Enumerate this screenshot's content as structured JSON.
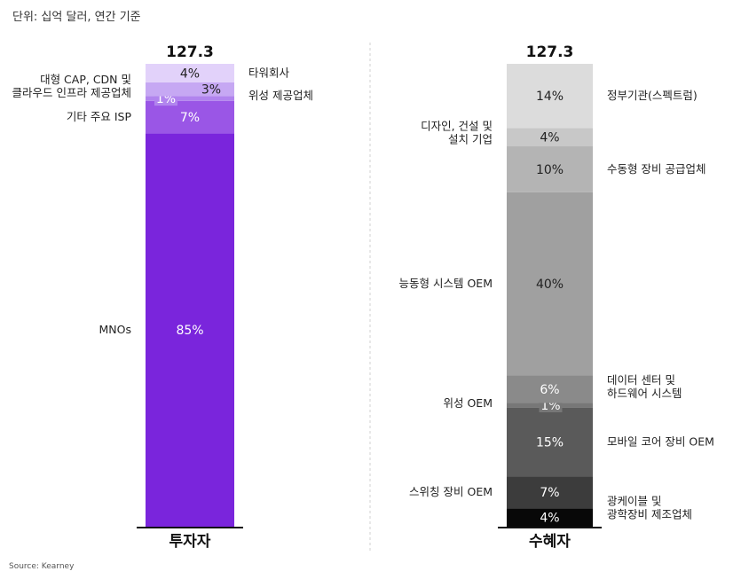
{
  "unit_note": "단위: 십억 달러, 연간 기준",
  "source": "Source: Kearney",
  "chart_data": [
    {
      "type": "stacked-bar",
      "category": "투자자",
      "total": "127.3",
      "segments": [
        {
          "label": "MNOs",
          "value": 85,
          "text": "85%",
          "color": "#7a25dc",
          "text_color": "#ffffff",
          "side": "left"
        },
        {
          "label": "기타 주요 ISP",
          "value": 7,
          "text": "7%",
          "color": "#9a56e6",
          "text_color": "#ffffff",
          "side": "left"
        },
        {
          "label": "대형 CAP, CDN 및\n클라우드 인프라 제공업체",
          "value": 1,
          "text": "1%",
          "color": "#b184ee",
          "text_color": "#ffffff",
          "side": "left"
        },
        {
          "label": "위성 제공업체",
          "value": 3,
          "text": "3%",
          "color": "#c6a8f3",
          "text_color": "#222222",
          "side": "right"
        },
        {
          "label": "타워회사",
          "value": 4,
          "text": "4%",
          "color": "#e2d2fa",
          "text_color": "#222222",
          "side": "right"
        }
      ]
    },
    {
      "type": "stacked-bar",
      "category": "수혜자",
      "total": "127.3",
      "segments": [
        {
          "label": "광케이블 및\n광학장비 제조업체",
          "value": 4,
          "text": "4%",
          "color": "#080808",
          "text_color": "#ffffff",
          "side": "right"
        },
        {
          "label": "스위칭 장비 OEM",
          "value": 7,
          "text": "7%",
          "color": "#3c3c3c",
          "text_color": "#ffffff",
          "side": "left"
        },
        {
          "label": "모바일 코어 장비 OEM",
          "value": 15,
          "text": "15%",
          "color": "#5a5a5a",
          "text_color": "#ffffff",
          "side": "right"
        },
        {
          "label": "위성 OEM",
          "value": 1,
          "text": "1%",
          "color": "#777777",
          "text_color": "#ffffff",
          "side": "left"
        },
        {
          "label": "데이터 센터 및\n하드웨어 시스템",
          "value": 6,
          "text": "6%",
          "color": "#8a8a8a",
          "text_color": "#ffffff",
          "side": "right"
        },
        {
          "label": "능동형 시스템 OEM",
          "value": 40,
          "text": "40%",
          "color": "#a0a0a0",
          "text_color": "#222222",
          "side": "left"
        },
        {
          "label": "수동형 장비 공급업체",
          "value": 10,
          "text": "10%",
          "color": "#b4b4b4",
          "text_color": "#222222",
          "side": "right"
        },
        {
          "label": "디자인, 건설 및\n설치 기업",
          "value": 4,
          "text": "4%",
          "color": "#c8c8c8",
          "text_color": "#222222",
          "side": "left"
        },
        {
          "label": "정부기관(스펙트럼)",
          "value": 14,
          "text": "14%",
          "color": "#dcdcdc",
          "text_color": "#222222",
          "side": "right"
        }
      ]
    }
  ]
}
